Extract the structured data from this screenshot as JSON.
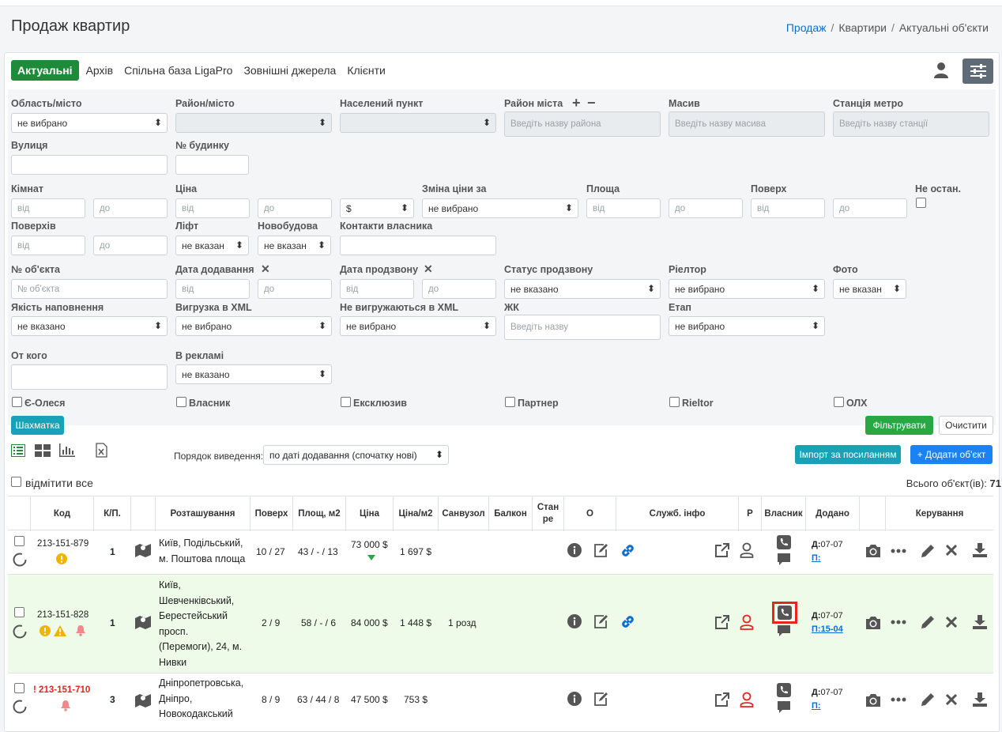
{
  "page": {
    "title": "Продаж квартир",
    "breadcrumb": {
      "link": "Продаж",
      "sep1": "/",
      "item2": "Квартири",
      "sep2": "/",
      "item3": "Актуальні об'єкти"
    }
  },
  "tabs": [
    "Актуальні",
    "Архів",
    "Спільна база LigaPro",
    "Зовнішні джерела",
    "Клієнти"
  ],
  "filters": {
    "oblast": {
      "label": "Область/місто",
      "value": "не вибрано"
    },
    "raion": {
      "label": "Район/місто"
    },
    "nasel": {
      "label": "Населений пункт"
    },
    "raion_mista": {
      "label": "Район міста",
      "plus": "+",
      "minus": "−",
      "placeholder": "Введіть назву района"
    },
    "masyv": {
      "label": "Масив",
      "placeholder": "Введіть назву масива"
    },
    "metro": {
      "label": "Станція метро",
      "placeholder": "Введіть назву станції"
    },
    "vulytsia": {
      "label": "Вулиця"
    },
    "budynok": {
      "label": "№ будинку"
    },
    "kimnat": {
      "label": "Кімнат",
      "from": "від",
      "to": "до"
    },
    "tsina": {
      "label": "Ціна",
      "from": "від",
      "to": "до",
      "currency": "$"
    },
    "zmina": {
      "label": "Зміна ціни за",
      "value": "не вибрано"
    },
    "ploshcha": {
      "label": "Площа",
      "from": "від",
      "to": "до"
    },
    "poverkh": {
      "label": "Поверх",
      "from": "від",
      "to": "до"
    },
    "ne_ostan": {
      "label": "Не остан."
    },
    "poverkhiv": {
      "label": "Поверхів",
      "from": "від",
      "to": "до"
    },
    "lift": {
      "label": "Ліфт",
      "value": "не вказан"
    },
    "novobud": {
      "label": "Новобудова",
      "value": "не вказан"
    },
    "kontakty": {
      "label": "Контакти власника"
    },
    "nomer": {
      "label": "№ об'єкта",
      "placeholder": "№ об'єкта"
    },
    "data_dod": {
      "label": "Дата додавання",
      "x": "✕",
      "from": "від",
      "to": "до"
    },
    "data_prod": {
      "label": "Дата продзвону",
      "x": "✕",
      "from": "від",
      "to": "до"
    },
    "status": {
      "label": "Статус продзвону",
      "value": "не вказано"
    },
    "rieltor": {
      "label": "Ріелтор",
      "value": "не вибрано"
    },
    "foto": {
      "label": "Фото",
      "value": "не вказан"
    },
    "yakist": {
      "label": "Якість наповнення",
      "value": "не вказано"
    },
    "xml": {
      "label": "Вигрузка в XML",
      "value": "не вибрано"
    },
    "ne_xml": {
      "label": "Не вигружаються в XML",
      "value": "не вибрано"
    },
    "zhk": {
      "label": "ЖК",
      "placeholder": "Введіть назву"
    },
    "etap": {
      "label": "Етап",
      "value": "не вибрано"
    },
    "ot_kogo": {
      "label": "От кого"
    },
    "reklama": {
      "label": "В рекламі",
      "value": "не вказано"
    },
    "checkboxes": [
      "Є-Олеся",
      "Власник",
      "Ексклюзив",
      "Партнер",
      "Rieltor",
      "ОЛХ"
    ]
  },
  "buttons": {
    "shakhmatka": "Шахматка",
    "filter": "Фільтрувати",
    "clear": "Очистити",
    "import": "Імпорт за посиланням",
    "add": "+ Додати об'єкт"
  },
  "order": {
    "label": "Порядок виведення:",
    "value": "по даті додавання (спочатку нові)"
  },
  "mark_all": "відмітити все",
  "total": {
    "label": "Всього об'єкт(ів):",
    "count": "71"
  },
  "table": {
    "headers": {
      "kod": "Код",
      "kp": "К/П.",
      "roz": "Розташування",
      "pov": "Поверх",
      "plosh": "Площ, м2",
      "tsina": "Ціна",
      "tsina_m2": "Ціна/м2",
      "sanvuzol": "Санвузол",
      "balkon": "Балкон",
      "stan1": "Стан",
      "stan2": "ре",
      "o": "О",
      "sluzh": "Служб. інфо",
      "r": "Р",
      "vlasnyk": "Власник",
      "dodano": "Додано",
      "keruvannia": "Керування"
    },
    "rows": [
      {
        "code": "213-151-879",
        "kp": "1",
        "loc1": "Київ, Подільський,",
        "loc2": "м. Поштова площа",
        "floor": "10 / 27",
        "area": "43 / - / 13",
        "price": "73 000 $",
        "ppm": "1 697 $",
        "sanvuzol": "",
        "d_label": "Д:",
        "d_val": "07-07",
        "p_label": "П:",
        "p_val": ""
      },
      {
        "code": "213-151-828",
        "kp": "1",
        "loc1": "Київ,",
        "loc2": "Шевченківський,",
        "loc3": "Берестейський",
        "loc4": "просп.",
        "loc5": "(Перемоги), 24, м.",
        "loc6": "Нивки",
        "floor": "2 / 9",
        "area": "58 / - / 6",
        "price": "84 000 $",
        "ppm": "1 448 $",
        "sanvuzol": "1 розд",
        "d_label": "Д:",
        "d_val": "07-07",
        "p_label": "П:",
        "p_val": "15-04"
      },
      {
        "code": "213-151-710",
        "code_prefix": "!",
        "kp": "3",
        "loc1": "Дніпропетровська,",
        "loc2": "Дніпро,",
        "loc3": "Новокодакський",
        "floor": "8 / 9",
        "area": "63 / 44 / 8",
        "price": "47 500 $",
        "ppm": "753 $",
        "sanvuzol": "",
        "d_label": "Д:",
        "d_val": "07-07",
        "p_label": "П:",
        "p_val": ""
      }
    ]
  },
  "colors": {
    "accent_green": "#1e8b3a",
    "link_blue": "#0b6fd1",
    "highlight_row": "#eefbe8",
    "alert_red": "#e8261e"
  }
}
